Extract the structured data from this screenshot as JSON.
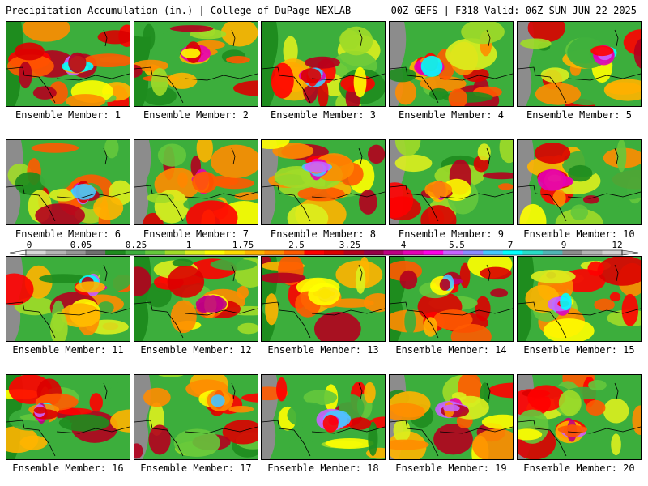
{
  "header": {
    "title": "Precipitation Accumulation (in.) | College of DuPage NEXLAB",
    "run_info": "00Z GEFS | F318 Valid: 06Z SUN JUN 22 2025"
  },
  "colorbar": {
    "tick_labels": [
      "0",
      "0.05",
      "0.25",
      "1",
      "1.75",
      "2.5",
      "3.25",
      "4",
      "5.5",
      "7",
      "9",
      "12"
    ],
    "colors": [
      "#d8d8d8",
      "#b4b4b4",
      "#969696",
      "#6e6e6e",
      "#1e8c1e",
      "#3cae3c",
      "#64c83c",
      "#a0dc28",
      "#dcf01e",
      "#ffff00",
      "#ffdc00",
      "#ffb400",
      "#ff8c00",
      "#ff5a00",
      "#ff0000",
      "#dc0000",
      "#b4001e",
      "#960046",
      "#be0082",
      "#e600b4",
      "#ff00e6",
      "#c864ff",
      "#8c8cff",
      "#46c8ff",
      "#00ffff",
      "#28dcc8",
      "#50b4b4",
      "#8c8c8c",
      "#b4b4b4",
      "#d2d2d2"
    ]
  },
  "ensemble_members": [
    {
      "label": "Ensemble Member: 1"
    },
    {
      "label": "Ensemble Member: 2"
    },
    {
      "label": "Ensemble Member: 3"
    },
    {
      "label": "Ensemble Member: 4"
    },
    {
      "label": "Ensemble Member: 5"
    },
    {
      "label": "Ensemble Member: 6"
    },
    {
      "label": "Ensemble Member: 7"
    },
    {
      "label": "Ensemble Member: 8"
    },
    {
      "label": "Ensemble Member: 9"
    },
    {
      "label": "Ensemble Member: 10"
    },
    {
      "label": "Ensemble Member: 11"
    },
    {
      "label": "Ensemble Member: 12"
    },
    {
      "label": "Ensemble Member: 13"
    },
    {
      "label": "Ensemble Member: 14"
    },
    {
      "label": "Ensemble Member: 15"
    },
    {
      "label": "Ensemble Member: 16"
    },
    {
      "label": "Ensemble Member: 17"
    },
    {
      "label": "Ensemble Member: 18"
    },
    {
      "label": "Ensemble Member: 19"
    },
    {
      "label": "Ensemble Member: 20"
    }
  ]
}
